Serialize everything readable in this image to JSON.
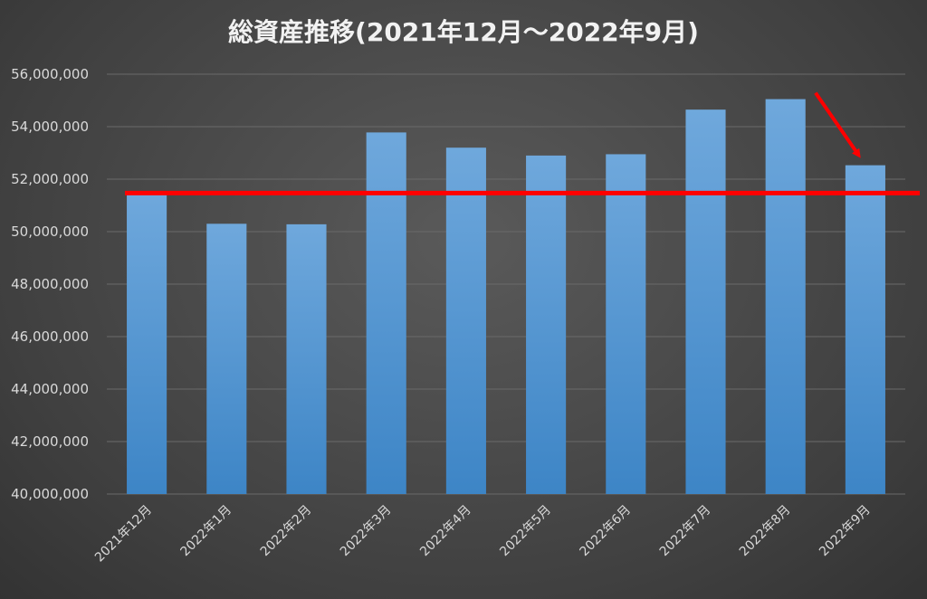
{
  "chart_data": {
    "type": "bar",
    "title": "総資産推移(2021年12月～2022年9月)",
    "categories": [
      "2021年12月",
      "2022年1月",
      "2022年2月",
      "2022年3月",
      "2022年4月",
      "2022年5月",
      "2022年6月",
      "2022年7月",
      "2022年8月",
      "2022年9月"
    ],
    "values": [
      51500000,
      50300000,
      50280000,
      53780000,
      53200000,
      52900000,
      52950000,
      54650000,
      55050000,
      52530000
    ],
    "ylim": [
      40000000,
      56000000
    ],
    "yticks": [
      "40,000,000",
      "42,000,000",
      "44,000,000",
      "46,000,000",
      "48,000,000",
      "50,000,000",
      "52,000,000",
      "54,000,000",
      "56,000,000"
    ],
    "ytick_values": [
      40000000,
      42000000,
      44000000,
      46000000,
      48000000,
      50000000,
      52000000,
      54000000,
      56000000
    ],
    "grid": true,
    "reference_line": {
      "value": 51470000,
      "color": "#ff0000"
    },
    "arrow_annotation": {
      "target_category": "2022年9月",
      "color": "#ff0000"
    },
    "bar_color": "#5b9bd5"
  }
}
